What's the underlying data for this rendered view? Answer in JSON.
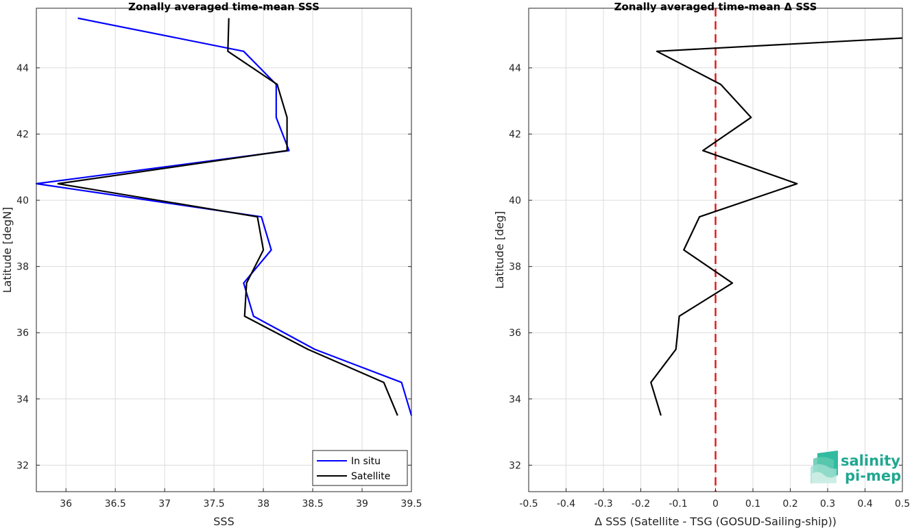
{
  "chart_data": [
    {
      "type": "line",
      "title": "Zonally averaged time-mean SSS",
      "xlabel": "SSS",
      "ylabel": "Latitude [degN]",
      "xlim": [
        35.7,
        39.5
      ],
      "ylim": [
        31.2,
        45.8
      ],
      "xticks": [
        36,
        36.5,
        37,
        37.5,
        38,
        38.5,
        39,
        39.5
      ],
      "xtick_labels": [
        "36",
        "36.5",
        "37",
        "37.5",
        "38",
        "38.5",
        "39",
        "39.5"
      ],
      "yticks": [
        32,
        34,
        36,
        38,
        40,
        42,
        44
      ],
      "ytick_labels": [
        "32",
        "34",
        "36",
        "38",
        "40",
        "42",
        "44"
      ],
      "grid": true,
      "legend_position": "bottom-right",
      "series": [
        {
          "name": "In situ",
          "color": "#0000ff",
          "x": [
            36.12,
            37.8,
            38.13,
            38.13,
            38.26,
            35.7,
            37.98,
            38.08,
            37.8,
            37.9,
            38.52,
            39.4,
            39.5
          ],
          "y": [
            45.5,
            44.5,
            43.5,
            42.5,
            41.5,
            40.5,
            39.5,
            38.5,
            37.5,
            36.5,
            35.5,
            34.5,
            33.5
          ]
        },
        {
          "name": "Satellite",
          "color": "#000000",
          "x": [
            37.65,
            37.64,
            38.14,
            38.24,
            38.24,
            35.92,
            37.94,
            38.0,
            37.83,
            37.81,
            38.45,
            39.22,
            39.36
          ],
          "y": [
            45.5,
            44.5,
            43.5,
            42.5,
            41.5,
            40.5,
            39.5,
            38.5,
            37.5,
            36.5,
            35.5,
            34.5,
            33.5
          ]
        }
      ]
    },
    {
      "type": "line",
      "title": "Zonally averaged time-mean Δ SSS",
      "xlabel": "Δ SSS (Satellite - TSG (GOSUD-Sailing-ship))",
      "ylabel": "Latitude [deg]",
      "xlim": [
        -0.5,
        0.5
      ],
      "ylim": [
        31.2,
        45.8
      ],
      "xticks": [
        -0.5,
        -0.4,
        -0.3,
        -0.2,
        -0.1,
        0,
        0.1,
        0.2,
        0.3,
        0.4,
        0.5
      ],
      "xtick_labels": [
        "-0.5",
        "-0.4",
        "-0.3",
        "-0.2",
        "-0.1",
        "0",
        "0.1",
        "0.2",
        "0.3",
        "0.4",
        "0.5"
      ],
      "yticks": [
        32,
        34,
        36,
        38,
        40,
        42,
        44
      ],
      "ytick_labels": [
        "32",
        "34",
        "36",
        "38",
        "40",
        "42",
        "44"
      ],
      "grid": true,
      "zero_line": {
        "x": 0,
        "color": "#e41a1c",
        "style": "dashed"
      },
      "series": [
        {
          "color": "#000000",
          "x": [
            0.5,
            -0.157,
            0.014,
            0.095,
            -0.034,
            0.218,
            -0.043,
            -0.085,
            0.045,
            -0.097,
            -0.106,
            -0.173,
            -0.146
          ],
          "y": [
            44.9,
            44.5,
            43.5,
            42.5,
            41.5,
            40.5,
            39.5,
            38.5,
            37.5,
            36.5,
            35.5,
            34.5,
            33.5
          ]
        }
      ]
    }
  ],
  "logo": {
    "line1": "salinity",
    "line2": "pi-mep",
    "color": "#1fa88f"
  }
}
